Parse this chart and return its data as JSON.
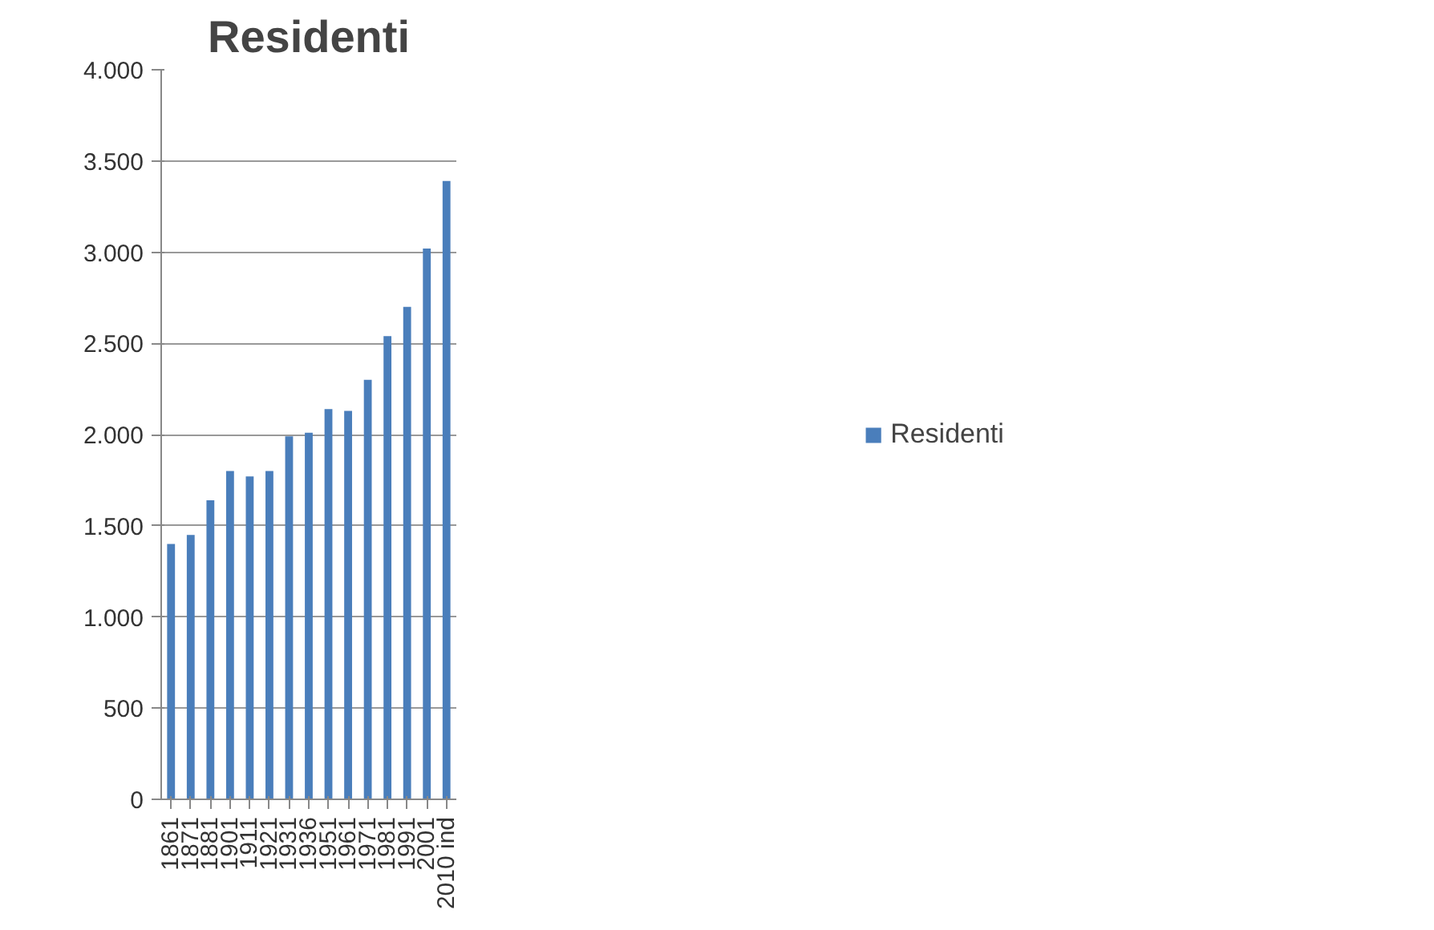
{
  "chart_data": {
    "type": "bar",
    "title": "Residenti",
    "categories": [
      "1861",
      "1871",
      "1881",
      "1901",
      "1911",
      "1921",
      "1931",
      "1936",
      "1951",
      "1961",
      "1971",
      "1981",
      "1991",
      "2001",
      "2010 ind"
    ],
    "series": [
      {
        "name": "Residenti",
        "color": "#4a7ebb",
        "values": [
          1400,
          1450,
          1640,
          1800,
          1770,
          1800,
          1990,
          2010,
          2140,
          2130,
          2300,
          2540,
          2700,
          3020,
          3390
        ]
      }
    ],
    "ylim": [
      0,
      4000
    ],
    "yticks": [
      {
        "value": 0,
        "label": "0"
      },
      {
        "value": 500,
        "label": "500"
      },
      {
        "value": 1000,
        "label": "1.000"
      },
      {
        "value": 1500,
        "label": "1.500"
      },
      {
        "value": 2000,
        "label": "2.000"
      },
      {
        "value": 2500,
        "label": "2.500"
      },
      {
        "value": 3000,
        "label": "3.000"
      },
      {
        "value": 3500,
        "label": "3.500"
      },
      {
        "value": 4000,
        "label": "4.000"
      }
    ],
    "grid": "y",
    "legend": "right"
  }
}
